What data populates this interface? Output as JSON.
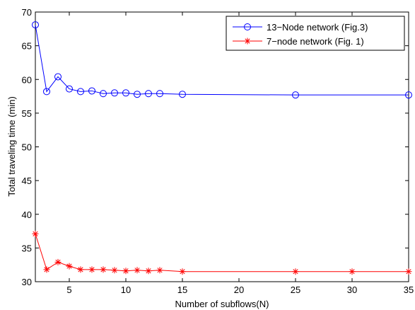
{
  "chart_data": {
    "type": "line",
    "title": "",
    "xlabel": "Number of subflows(N)",
    "ylabel": "Total traveling time (min)",
    "xlim": [
      2,
      35
    ],
    "ylim": [
      30,
      70
    ],
    "xticks": [
      5,
      10,
      15,
      20,
      25,
      30,
      35
    ],
    "yticks": [
      30,
      35,
      40,
      45,
      50,
      55,
      60,
      65,
      70
    ],
    "grid": false,
    "legend_position": "top-right",
    "series": [
      {
        "name": "13−Node network (Fig.3)",
        "color": "#0000ff",
        "marker": "circle",
        "x": [
          2,
          3,
          4,
          5,
          6,
          7,
          8,
          9,
          10,
          11,
          12,
          13,
          15,
          25,
          35
        ],
        "y": [
          68.1,
          58.2,
          60.4,
          58.6,
          58.2,
          58.3,
          57.9,
          58.0,
          58.0,
          57.8,
          57.9,
          57.9,
          57.8,
          57.7,
          57.7
        ]
      },
      {
        "name": "7−node network (Fig. 1)",
        "color": "#ff0000",
        "marker": "asterisk",
        "x": [
          2,
          3,
          4,
          5,
          6,
          7,
          8,
          9,
          10,
          11,
          12,
          13,
          15,
          25,
          30,
          35
        ],
        "y": [
          37.1,
          31.8,
          32.9,
          32.3,
          31.8,
          31.8,
          31.8,
          31.7,
          31.6,
          31.7,
          31.6,
          31.7,
          31.5,
          31.5,
          31.5,
          31.5
        ]
      }
    ]
  }
}
